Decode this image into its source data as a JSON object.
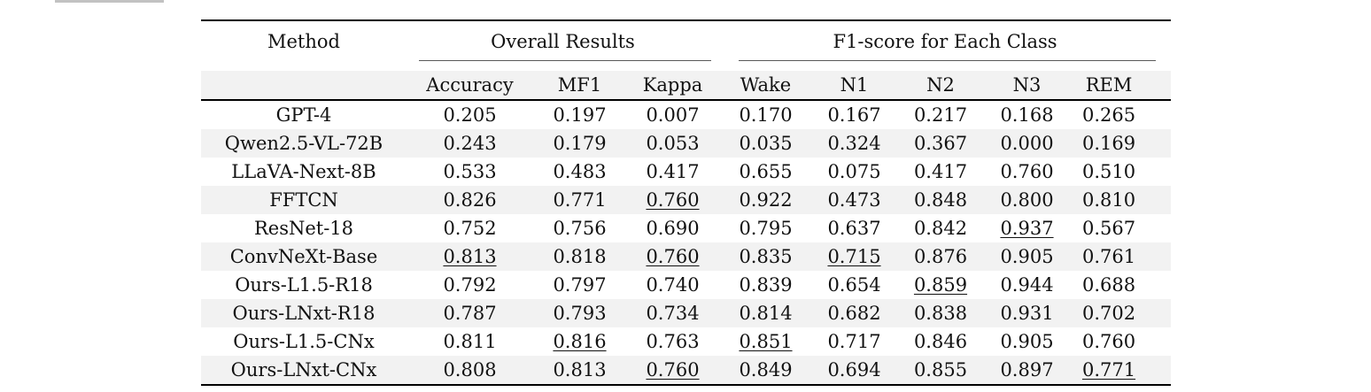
{
  "artifacts": {
    "top_left_bar_color": "#c2c2c2"
  },
  "table": {
    "col_groups": [
      {
        "label": "Method",
        "span": 1
      },
      {
        "label": "Overall Results",
        "span": 3
      },
      {
        "label": "F1-score for Each Class",
        "span": 5
      }
    ],
    "columns": [
      "Accuracy",
      "MF1",
      "Kappa",
      "Wake",
      "N1",
      "N2",
      "N3",
      "REM"
    ],
    "rows": [
      {
        "method": "GPT-4",
        "values": [
          "0.205",
          "0.197",
          "0.007",
          "0.170",
          "0.167",
          "0.217",
          "0.168",
          "0.265"
        ],
        "underline": []
      },
      {
        "method": "Qwen2.5-VL-72B",
        "values": [
          "0.243",
          "0.179",
          "0.053",
          "0.035",
          "0.324",
          "0.367",
          "0.000",
          "0.169"
        ],
        "underline": []
      },
      {
        "method": "LLaVA-Next-8B",
        "values": [
          "0.533",
          "0.483",
          "0.417",
          "0.655",
          "0.075",
          "0.417",
          "0.760",
          "0.510"
        ],
        "underline": []
      },
      {
        "method": "FFTCN",
        "values": [
          "0.826",
          "0.771",
          "0.760",
          "0.922",
          "0.473",
          "0.848",
          "0.800",
          "0.810"
        ],
        "underline": [
          2
        ]
      },
      {
        "method": "ResNet-18",
        "values": [
          "0.752",
          "0.756",
          "0.690",
          "0.795",
          "0.637",
          "0.842",
          "0.937",
          "0.567"
        ],
        "underline": [
          6
        ]
      },
      {
        "method": "ConvNeXt-Base",
        "values": [
          "0.813",
          "0.818",
          "0.760",
          "0.835",
          "0.715",
          "0.876",
          "0.905",
          "0.761"
        ],
        "underline": [
          0,
          2,
          4
        ]
      },
      {
        "method": "Ours-L1.5-R18",
        "values": [
          "0.792",
          "0.797",
          "0.740",
          "0.839",
          "0.654",
          "0.859",
          "0.944",
          "0.688"
        ],
        "underline": [
          5
        ]
      },
      {
        "method": "Ours-LNxt-R18",
        "values": [
          "0.787",
          "0.793",
          "0.734",
          "0.814",
          "0.682",
          "0.838",
          "0.931",
          "0.702"
        ],
        "underline": []
      },
      {
        "method": "Ours-L1.5-CNx",
        "values": [
          "0.811",
          "0.816",
          "0.763",
          "0.851",
          "0.717",
          "0.846",
          "0.905",
          "0.760"
        ],
        "underline": [
          1,
          3
        ]
      },
      {
        "method": "Ours-LNxt-CNx",
        "values": [
          "0.808",
          "0.813",
          "0.760",
          "0.849",
          "0.694",
          "0.855",
          "0.897",
          "0.771"
        ],
        "underline": [
          2,
          7
        ]
      }
    ],
    "colors": {
      "stripe": "#f2f2f2",
      "rule_heavy": "#000000",
      "rule_light": "#595959",
      "text": "#111111"
    }
  }
}
